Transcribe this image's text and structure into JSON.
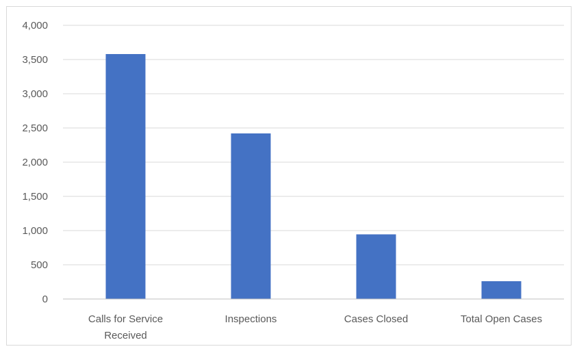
{
  "chart_data": {
    "type": "bar",
    "title": "",
    "xlabel": "",
    "ylabel": "",
    "categories": [
      [
        "Calls for Service",
        "Received"
      ],
      [
        "Inspections"
      ],
      [
        "Cases Closed"
      ],
      [
        "Total Open Cases"
      ]
    ],
    "values": [
      3580,
      2420,
      945,
      260
    ],
    "ylim": [
      0,
      4000
    ],
    "yticks": [
      0,
      500,
      1000,
      1500,
      2000,
      2500,
      3000,
      3500,
      4000
    ],
    "ytick_labels": [
      "0",
      "500",
      "1,000",
      "1,500",
      "2,000",
      "2,500",
      "3,000",
      "3,500",
      "4,000"
    ],
    "grid": true,
    "legend": "none",
    "colors": {
      "bar": "#4472c4",
      "grid": "#d9d9d9",
      "axis": "#bfbfbf",
      "text": "#595959"
    }
  }
}
